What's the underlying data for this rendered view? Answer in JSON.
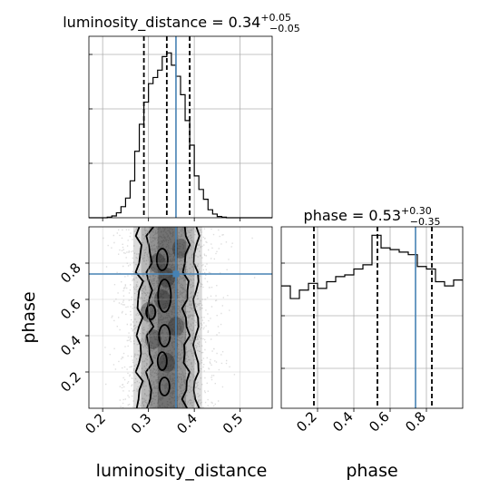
{
  "chart_data": [
    {
      "type": "histogram",
      "panel": "luminosity_distance marginal",
      "title": {
        "main": "luminosity_distance = 0.34",
        "sup": "+0.05",
        "sub": "−0.05"
      },
      "x": {
        "label": "luminosity_distance",
        "range": [
          0.17,
          0.57
        ],
        "ticks": [
          0.2,
          0.3,
          0.4,
          0.5
        ],
        "tick_labels": [
          "0.2",
          "0.3",
          "0.4",
          "0.5"
        ]
      },
      "bins": [
        0.17,
        0.18,
        0.19,
        0.2,
        0.21,
        0.22,
        0.23,
        0.24,
        0.25,
        0.26,
        0.27,
        0.28,
        0.29,
        0.3,
        0.31,
        0.32,
        0.33,
        0.34,
        0.35,
        0.36,
        0.37,
        0.38,
        0.39,
        0.4,
        0.41,
        0.42,
        0.43,
        0.44,
        0.45,
        0.46,
        0.47,
        0.48,
        0.49,
        0.5,
        0.51,
        0.52,
        0.53,
        0.54,
        0.55,
        0.56,
        0.57
      ],
      "counts": [
        0,
        0,
        0,
        0,
        1,
        3,
        8,
        18,
        32,
        60,
        108,
        152,
        188,
        218,
        228,
        240,
        262,
        268,
        248,
        230,
        200,
        158,
        118,
        68,
        46,
        30,
        13,
        6,
        2,
        1,
        0,
        0,
        0,
        0,
        0,
        0,
        0,
        0,
        0,
        0
      ],
      "ylim": [
        0,
        295
      ],
      "quantiles": [
        0.29,
        0.34,
        0.39
      ],
      "truth": 0.36,
      "grid": true
    },
    {
      "type": "histogram",
      "panel": "phase marginal",
      "title": {
        "main": "phase = 0.53",
        "sup": "+0.30",
        "sub": "−0.35"
      },
      "x": {
        "label": "phase",
        "range": [
          0.0,
          1.0
        ],
        "ticks": [
          0.2,
          0.4,
          0.6,
          0.8
        ],
        "tick_labels": [
          "0.2",
          "0.4",
          "0.6",
          "0.8"
        ]
      },
      "bins": [
        0.0,
        0.05,
        0.1,
        0.15,
        0.2,
        0.25,
        0.3,
        0.35,
        0.4,
        0.45,
        0.5,
        0.55,
        0.6,
        0.65,
        0.7,
        0.75,
        0.8,
        0.85,
        0.9,
        0.95,
        1.0
      ],
      "counts": [
        145,
        130,
        140,
        148,
        142,
        150,
        156,
        158,
        165,
        170,
        205,
        190,
        188,
        185,
        182,
        168,
        165,
        150,
        145,
        152
      ],
      "ylim": [
        0,
        215
      ],
      "quantiles": [
        0.18,
        0.53,
        0.83
      ],
      "truth": 0.74,
      "grid": true
    },
    {
      "type": "2d-density-contour",
      "panel": "phase vs luminosity_distance",
      "x": {
        "label": "luminosity_distance",
        "range": [
          0.17,
          0.57
        ],
        "ticks": [
          0.2,
          0.3,
          0.4,
          0.5
        ],
        "tick_labels": [
          "0.2",
          "0.3",
          "0.4",
          "0.5"
        ]
      },
      "y": {
        "label": "phase",
        "range": [
          0.0,
          1.0
        ],
        "ticks": [
          0.2,
          0.4,
          0.6,
          0.8
        ],
        "tick_labels": [
          "0.2",
          "0.4",
          "0.6",
          "0.8"
        ]
      },
      "truth": {
        "x": 0.36,
        "y": 0.74
      },
      "colors": {
        "truth": "#4682b4",
        "density": "#000000"
      },
      "grid": true
    }
  ]
}
